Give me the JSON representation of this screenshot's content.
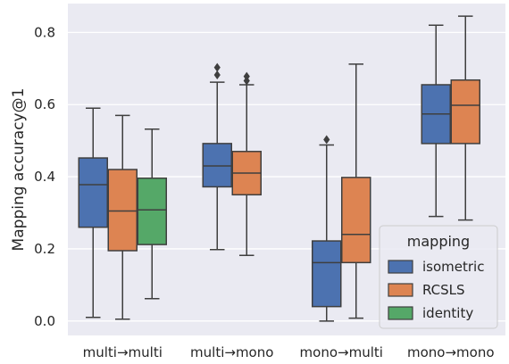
{
  "chart_data": {
    "type": "box",
    "ylabel": "Mapping accuracy@1",
    "xlabel": "",
    "ylim": [
      -0.04,
      0.88
    ],
    "yticks": [
      0.0,
      0.2,
      0.4,
      0.6,
      0.8
    ],
    "ytick_labels": [
      "0.0",
      "0.2",
      "0.4",
      "0.6",
      "0.8"
    ],
    "categories": [
      "multi→multi",
      "multi→mono",
      "mono→multi",
      "mono→mono"
    ],
    "grid": true,
    "background_color": "#eaeaf2",
    "legend": {
      "title": "mapping",
      "position": "lower-right"
    },
    "series": [
      {
        "name": "isometric",
        "color": "#4c72b0",
        "boxes": [
          {
            "category": "multi→multi",
            "whisker_low": 0.01,
            "q1": 0.26,
            "median": 0.378,
            "q3": 0.452,
            "whisker_high": 0.59,
            "outliers": []
          },
          {
            "category": "multi→mono",
            "whisker_low": 0.198,
            "q1": 0.372,
            "median": 0.43,
            "q3": 0.492,
            "whisker_high": 0.662,
            "outliers": [
              0.682,
              0.703
            ]
          },
          {
            "category": "mono→multi",
            "whisker_low": 0.0,
            "q1": 0.04,
            "median": 0.162,
            "q3": 0.222,
            "whisker_high": 0.488,
            "outliers": [
              0.503
            ]
          },
          {
            "category": "mono→mono",
            "whisker_low": 0.29,
            "q1": 0.492,
            "median": 0.574,
            "q3": 0.655,
            "whisker_high": 0.82,
            "outliers": []
          }
        ]
      },
      {
        "name": "RCSLS",
        "color": "#dd8452",
        "boxes": [
          {
            "category": "multi→multi",
            "whisker_low": 0.005,
            "q1": 0.195,
            "median": 0.305,
            "q3": 0.42,
            "whisker_high": 0.57,
            "outliers": []
          },
          {
            "category": "multi→mono",
            "whisker_low": 0.182,
            "q1": 0.35,
            "median": 0.41,
            "q3": 0.47,
            "whisker_high": 0.655,
            "outliers": [
              0.666,
              0.678
            ]
          },
          {
            "category": "mono→multi",
            "whisker_low": 0.008,
            "q1": 0.162,
            "median": 0.24,
            "q3": 0.398,
            "whisker_high": 0.712,
            "outliers": []
          },
          {
            "category": "mono→mono",
            "whisker_low": 0.28,
            "q1": 0.492,
            "median": 0.598,
            "q3": 0.668,
            "whisker_high": 0.845,
            "outliers": []
          }
        ]
      },
      {
        "name": "identity",
        "color": "#55a868",
        "boxes": [
          {
            "category": "multi→multi",
            "whisker_low": 0.062,
            "q1": 0.212,
            "median": 0.308,
            "q3": 0.396,
            "whisker_high": 0.532,
            "outliers": []
          }
        ]
      }
    ]
  }
}
